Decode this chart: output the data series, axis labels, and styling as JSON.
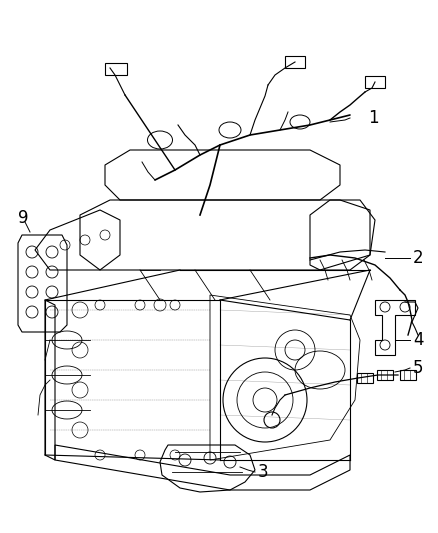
{
  "background_color": "#ffffff",
  "fig_width": 4.38,
  "fig_height": 5.33,
  "dpi": 100,
  "image_data": ""
}
